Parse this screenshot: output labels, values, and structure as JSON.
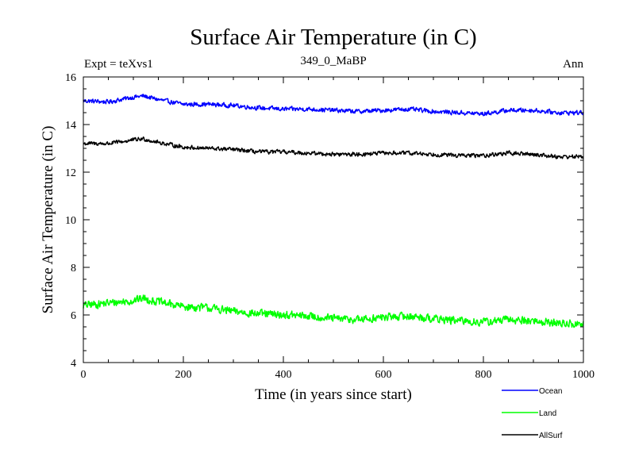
{
  "chart_data": {
    "type": "line",
    "title": "Surface Air Temperature (in C)",
    "subtitle_left": "Expt = teXvs1",
    "subtitle_center": "349_0_MaBP",
    "subtitle_right": "Ann",
    "xlabel": "Time (in years since start)",
    "ylabel": "Surface Air Temperature (in C)",
    "xlim": [
      0,
      1000
    ],
    "ylim": [
      4,
      16
    ],
    "x_ticks": [
      0,
      200,
      400,
      600,
      800,
      1000
    ],
    "x_tick_labels": [
      "0",
      "200",
      "400",
      "600",
      "800",
      "1000"
    ],
    "y_ticks": [
      4,
      6,
      8,
      10,
      12,
      14,
      16
    ],
    "y_tick_labels": [
      "4",
      "6",
      "8",
      "10",
      "12",
      "14",
      "16"
    ],
    "grid": false,
    "legend_position": "bottom-right",
    "series": [
      {
        "name": "Ocean",
        "color": "#0000ff",
        "x": [
          0,
          50,
          100,
          120,
          150,
          200,
          250,
          300,
          350,
          400,
          450,
          500,
          550,
          600,
          650,
          700,
          750,
          800,
          850,
          900,
          950,
          1000
        ],
        "values": [
          15.0,
          14.95,
          15.15,
          15.2,
          15.05,
          14.85,
          14.85,
          14.8,
          14.7,
          14.65,
          14.65,
          14.6,
          14.55,
          14.6,
          14.65,
          14.55,
          14.5,
          14.45,
          14.6,
          14.6,
          14.5,
          14.5
        ]
      },
      {
        "name": "Land",
        "color": "#00ff00",
        "x": [
          0,
          50,
          100,
          120,
          150,
          200,
          250,
          300,
          350,
          400,
          450,
          500,
          550,
          600,
          650,
          700,
          750,
          800,
          850,
          900,
          950,
          1000
        ],
        "values": [
          6.4,
          6.5,
          6.6,
          6.7,
          6.55,
          6.35,
          6.3,
          6.15,
          6.05,
          6.0,
          5.95,
          5.85,
          5.8,
          5.9,
          5.95,
          5.85,
          5.75,
          5.7,
          5.8,
          5.75,
          5.65,
          5.6
        ]
      },
      {
        "name": "AllSurf",
        "color": "#000000",
        "x": [
          0,
          50,
          100,
          120,
          150,
          200,
          250,
          300,
          350,
          400,
          450,
          500,
          550,
          600,
          650,
          700,
          750,
          800,
          850,
          900,
          950,
          1000
        ],
        "values": [
          13.2,
          13.2,
          13.35,
          13.4,
          13.25,
          13.05,
          13.0,
          12.95,
          12.85,
          12.85,
          12.8,
          12.75,
          12.75,
          12.8,
          12.8,
          12.75,
          12.7,
          12.7,
          12.8,
          12.75,
          12.65,
          12.65
        ]
      }
    ]
  }
}
